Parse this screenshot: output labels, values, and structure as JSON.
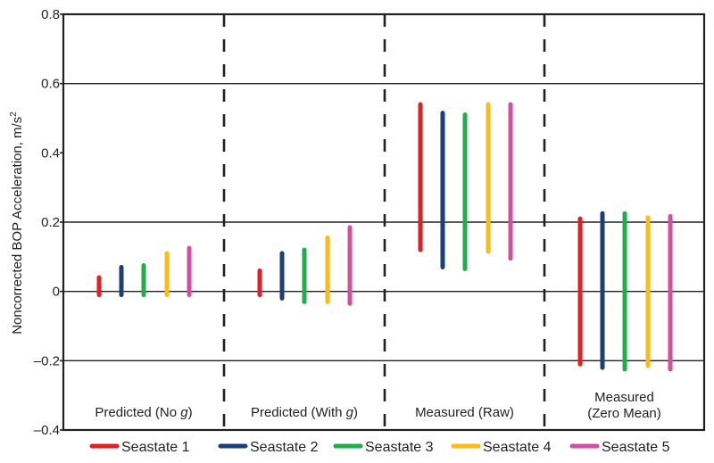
{
  "chart_data": {
    "type": "range-bar",
    "title": "",
    "xlabel": "",
    "ylabel": "Noncorrected BOP Acceleration, m/s",
    "ylabel_superscript": "2",
    "ylim": [
      -0.4,
      0.8
    ],
    "yticks": [
      -0.4,
      -0.2,
      0,
      0.2,
      0.4,
      0.6,
      0.8
    ],
    "ytick_labels": [
      "–0.4",
      "–0.2",
      "0",
      "0.2",
      "0.4",
      "0.6",
      "0.8"
    ],
    "gridlines": [
      -0.2,
      0,
      0.2,
      0.6
    ],
    "grid": true,
    "legend_position": "bottom",
    "categories": [
      {
        "lines": [
          {
            "text": "Predicted (No ",
            "italic_suffix": "g",
            "close": ")"
          }
        ]
      },
      {
        "lines": [
          {
            "text": "Predicted (With ",
            "italic_suffix": "g",
            "close": ")"
          }
        ]
      },
      {
        "lines": [
          {
            "text": "Measured (Raw)",
            "italic_suffix": "",
            "close": ""
          }
        ]
      },
      {
        "lines": [
          {
            "text": "Measured",
            "italic_suffix": "",
            "close": ""
          },
          {
            "text": "(Zero Mean)",
            "italic_suffix": "",
            "close": ""
          }
        ]
      }
    ],
    "series": [
      {
        "name": "Seastate 1",
        "color": "#e31f26",
        "ranges": [
          [
            -0.01,
            0.04
          ],
          [
            -0.01,
            0.06
          ],
          [
            0.12,
            0.54
          ],
          [
            -0.21,
            0.21
          ]
        ]
      },
      {
        "name": "Seastate 2",
        "color": "#1b3f7a",
        "ranges": [
          [
            -0.01,
            0.07
          ],
          [
            -0.02,
            0.11
          ],
          [
            0.07,
            0.515
          ],
          [
            -0.22,
            0.225
          ]
        ]
      },
      {
        "name": "Seastate 3",
        "color": "#1fae4b",
        "ranges": [
          [
            -0.01,
            0.075
          ],
          [
            -0.03,
            0.12
          ],
          [
            0.065,
            0.51
          ],
          [
            -0.225,
            0.225
          ]
        ]
      },
      {
        "name": "Seastate 4",
        "color": "#fdbb15",
        "ranges": [
          [
            -0.01,
            0.11
          ],
          [
            -0.03,
            0.155
          ],
          [
            0.115,
            0.54
          ],
          [
            -0.215,
            0.213
          ]
        ]
      },
      {
        "name": "Seastate 5",
        "color": "#d2509f",
        "ranges": [
          [
            -0.01,
            0.125
          ],
          [
            -0.035,
            0.185
          ],
          [
            0.095,
            0.54
          ],
          [
            -0.225,
            0.217
          ]
        ]
      }
    ]
  }
}
